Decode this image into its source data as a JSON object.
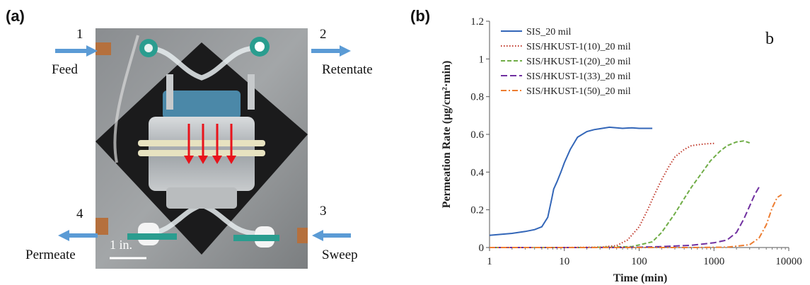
{
  "panels": {
    "a_label": "(a)",
    "b_label": "(b)"
  },
  "photo": {
    "ports": [
      {
        "number": "1",
        "label": "Feed"
      },
      {
        "number": "2",
        "label": "Retentate"
      },
      {
        "number": "3",
        "label": "Sweep"
      },
      {
        "number": "4",
        "label": "Permeate"
      }
    ],
    "scale_label": "1 in.",
    "colors": {
      "arrow_blue": "#5b9bd5",
      "flow_red": "#e8131b"
    }
  },
  "chart_data": {
    "type": "line",
    "corner_label": "b",
    "xlabel": "Time (min)",
    "ylabel": "Permeation Rate (µg/cm²·min)",
    "xscale": "log",
    "xlim": [
      1,
      10000
    ],
    "ylim": [
      0,
      1.2
    ],
    "xticks": [
      1,
      10,
      100,
      1000,
      10000
    ],
    "xtick_labels": [
      "1",
      "10",
      "100",
      "1000",
      "10000"
    ],
    "yticks": [
      0,
      0.2,
      0.4,
      0.6,
      0.8,
      1.0,
      1.2
    ],
    "ytick_labels": [
      "0",
      "0.2",
      "0.4",
      "0.6",
      "0.8",
      "1",
      "1.2"
    ],
    "grid": false,
    "legend_position": "top-left",
    "series": [
      {
        "name": "SIS_20 mil",
        "color": "#3366b8",
        "dash": "solid",
        "x": [
          1,
          2,
          3,
          4,
          5,
          6,
          6.8,
          7.2,
          8,
          9,
          10,
          12,
          15,
          20,
          25,
          30,
          40,
          50,
          60,
          80,
          100,
          150
        ],
        "y": [
          0.065,
          0.075,
          0.085,
          0.095,
          0.11,
          0.16,
          0.26,
          0.31,
          0.35,
          0.4,
          0.45,
          0.52,
          0.585,
          0.615,
          0.625,
          0.63,
          0.638,
          0.635,
          0.632,
          0.635,
          0.632,
          0.632
        ]
      },
      {
        "name": "SIS/HKUST-1(10)_20 mil",
        "color": "#c0392b",
        "dash": "dot",
        "x": [
          1,
          10,
          30,
          50,
          70,
          100,
          130,
          160,
          200,
          250,
          300,
          400,
          500,
          600,
          800,
          1000
        ],
        "y": [
          0,
          0,
          0.002,
          0.01,
          0.04,
          0.11,
          0.2,
          0.28,
          0.36,
          0.43,
          0.48,
          0.52,
          0.54,
          0.545,
          0.55,
          0.552
        ]
      },
      {
        "name": "SIS/HKUST-1(20)_20 mil",
        "color": "#70ad47",
        "dash": "dash",
        "x": [
          1,
          20,
          80,
          150,
          200,
          300,
          400,
          500,
          700,
          900,
          1200,
          1500,
          2000,
          2500,
          3000
        ],
        "y": [
          0,
          0,
          0.005,
          0.03,
          0.08,
          0.18,
          0.26,
          0.32,
          0.4,
          0.46,
          0.51,
          0.54,
          0.56,
          0.565,
          0.555
        ]
      },
      {
        "name": "SIS/HKUST-1(33)_20 mil",
        "color": "#7030a0",
        "dash": "dashlong",
        "x": [
          1,
          50,
          100,
          200,
          500,
          1000,
          1500,
          2000,
          2500,
          3000,
          3500,
          4000
        ],
        "y": [
          0,
          0,
          0.002,
          0.005,
          0.012,
          0.025,
          0.04,
          0.08,
          0.15,
          0.22,
          0.28,
          0.32
        ]
      },
      {
        "name": "SIS/HKUST-1(50)_20 mil",
        "color": "#ed7d31",
        "dash": "dashdot",
        "x": [
          1,
          50,
          500,
          1500,
          3000,
          4000,
          5000,
          6000,
          7000,
          8000
        ],
        "y": [
          0,
          0,
          0,
          0.002,
          0.015,
          0.05,
          0.12,
          0.21,
          0.265,
          0.28
        ]
      }
    ]
  }
}
